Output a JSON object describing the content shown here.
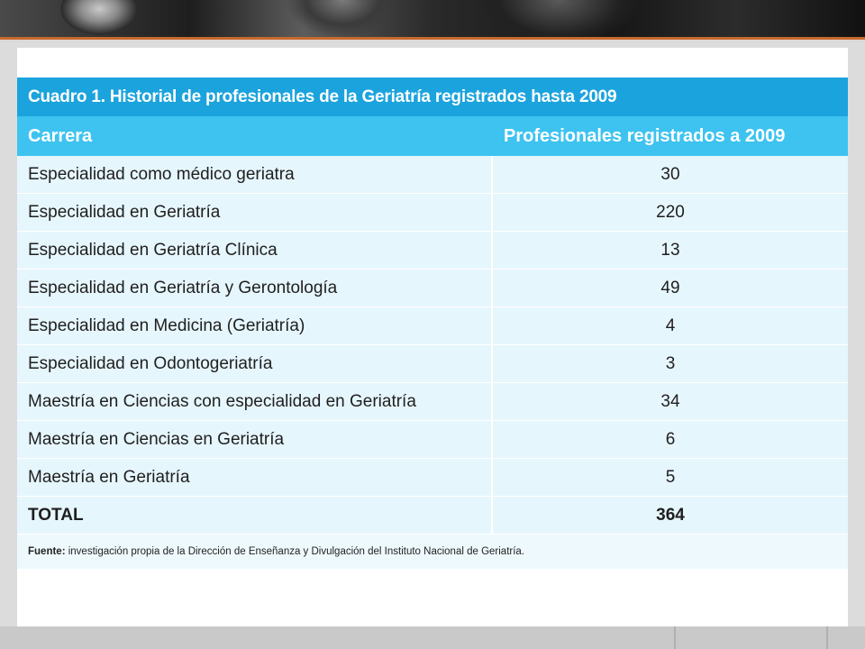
{
  "table": {
    "caption": "Cuadro 1. Historial de profesionales de la Geriatría registrados hasta 2009",
    "columns": [
      "Carrera",
      "Profesionales registrados a 2009"
    ],
    "rows": [
      [
        "Especialidad como médico geriatra",
        "30"
      ],
      [
        "Especialidad en Geriatría",
        "220"
      ],
      [
        "Especialidad en Geriatría Clínica",
        "13"
      ],
      [
        "Especialidad en Geriatría y Gerontología",
        "49"
      ],
      [
        "Especialidad en Medicina (Geriatría)",
        "4"
      ],
      [
        "Especialidad en Odontogeriatría",
        "3"
      ],
      [
        "Maestría en Ciencias con especialidad en Geriatría",
        "34"
      ],
      [
        "Maestría en Ciencias en Geriatría",
        "6"
      ],
      [
        "Maestría en Geriatría",
        "5"
      ]
    ],
    "total": [
      "TOTAL",
      "364"
    ],
    "source_label": "Fuente:",
    "source_text": " investigación propia de la Dirección de Enseñanza y Divulgación del Instituto Nacional de Geriatría."
  },
  "colors": {
    "caption_bg": "#1ba3dd",
    "header_bg": "#3ec3f0",
    "row_bg": "#e6f6fd",
    "accent_line": "#c8692f"
  }
}
